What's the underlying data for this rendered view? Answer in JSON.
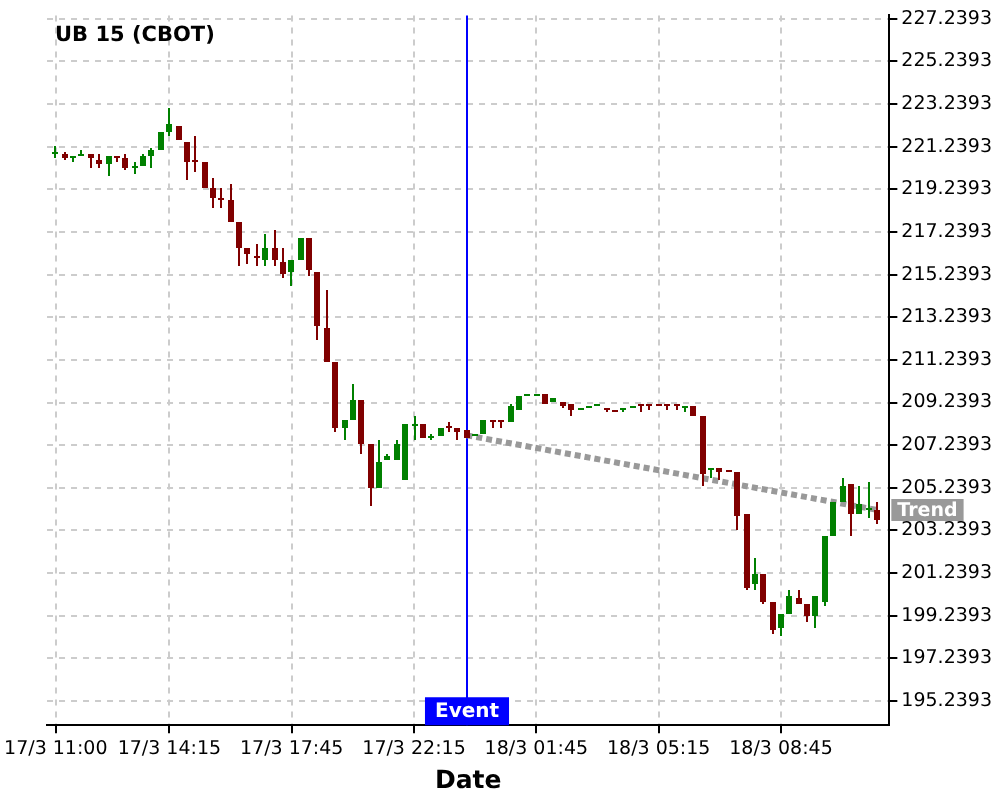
{
  "chart_data": {
    "type": "candlestick",
    "title": "UB 15 (CBOT)",
    "xlabel": "Date",
    "categories": [
      "17/3 11:00",
      null,
      null,
      null,
      null,
      null,
      null,
      null,
      null,
      null,
      null,
      null,
      null,
      "17/3 14:15",
      null,
      null,
      null,
      null,
      null,
      null,
      null,
      null,
      null,
      null,
      null,
      null,
      null,
      "17/3 17:45",
      null,
      null,
      null,
      null,
      null,
      null,
      null,
      null,
      null,
      null,
      null,
      null,
      null,
      "17/3 22:15",
      null,
      null,
      null,
      null,
      null,
      null,
      null,
      null,
      null,
      null,
      null,
      null,
      null,
      "18/3 01:45",
      null,
      null,
      null,
      null,
      null,
      null,
      null,
      null,
      null,
      null,
      null,
      null,
      null,
      "18/3 05:15",
      null,
      null,
      null,
      null,
      null,
      null,
      null,
      null,
      null,
      null,
      null,
      null,
      null,
      "18/3 08:45",
      null,
      null,
      null,
      null,
      null,
      null,
      null,
      null,
      null,
      null,
      null
    ],
    "ylim": [
      194.1,
      227.4
    ],
    "yticks": [
      195.2393,
      197.2393,
      199.2393,
      201.2393,
      203.2393,
      205.2393,
      207.2393,
      209.2393,
      211.2393,
      213.2393,
      215.2393,
      217.2393,
      219.2393,
      221.2393,
      223.2393,
      225.2393,
      227.2393
    ],
    "grid": true,
    "annotations": [
      "Event"
    ],
    "series": [
      {
        "ohlc": [
          [
            220.95,
            221.3,
            220.7,
            221.0
          ],
          [
            220.9,
            221.0,
            220.65,
            220.7
          ],
          [
            220.75,
            220.85,
            220.5,
            220.85
          ],
          [
            220.8,
            221.1,
            220.8,
            220.9
          ],
          [
            220.9,
            220.9,
            220.2,
            220.7
          ],
          [
            220.6,
            220.9,
            220.2,
            220.45
          ],
          [
            220.45,
            220.85,
            219.9,
            220.85
          ],
          [
            220.85,
            220.85,
            220.5,
            220.7
          ],
          [
            220.7,
            220.9,
            220.15,
            220.2
          ],
          [
            220.2,
            220.5,
            220.0,
            220.3
          ],
          [
            220.3,
            220.9,
            220.3,
            220.8
          ],
          [
            220.8,
            221.15,
            220.2,
            221.05
          ],
          [
            221.05,
            221.95,
            221.05,
            221.95
          ],
          [
            221.95,
            223.05,
            221.75,
            222.3
          ],
          [
            222.25,
            222.25,
            221.55,
            221.55
          ],
          [
            221.45,
            221.45,
            219.65,
            220.55
          ],
          [
            220.6,
            221.75,
            220.1,
            220.55
          ],
          [
            220.55,
            220.55,
            219.3,
            219.3
          ],
          [
            219.3,
            219.75,
            218.35,
            218.85
          ],
          [
            218.85,
            219.3,
            218.4,
            218.7
          ],
          [
            218.7,
            219.45,
            217.75,
            217.75
          ],
          [
            217.75,
            217.75,
            215.6,
            216.45
          ],
          [
            216.45,
            216.45,
            215.7,
            216.2
          ],
          [
            216.15,
            216.7,
            215.65,
            216.0
          ],
          [
            215.95,
            217.1,
            215.65,
            216.45
          ],
          [
            216.45,
            217.35,
            215.65,
            215.9
          ],
          [
            215.85,
            216.45,
            215.05,
            215.3
          ],
          [
            215.35,
            215.95,
            214.75,
            215.95
          ],
          [
            215.95,
            217.0,
            215.95,
            217.0
          ],
          [
            217.0,
            217.0,
            215.15,
            215.5
          ],
          [
            215.4,
            215.4,
            212.2,
            212.8
          ],
          [
            212.7,
            214.5,
            211.15,
            211.15
          ],
          [
            211.15,
            211.15,
            207.9,
            208.0
          ],
          [
            208.0,
            208.45,
            207.5,
            208.45
          ],
          [
            208.45,
            210.1,
            208.45,
            209.4
          ],
          [
            209.4,
            209.4,
            206.85,
            207.25
          ],
          [
            207.25,
            207.25,
            204.4,
            205.2
          ],
          [
            205.2,
            207.45,
            205.2,
            206.45
          ],
          [
            206.5,
            206.85,
            206.5,
            206.7
          ],
          [
            206.55,
            207.5,
            206.55,
            207.3
          ],
          [
            205.65,
            208.2,
            205.65,
            208.2
          ],
          [
            208.15,
            208.6,
            207.45,
            208.25
          ],
          [
            208.2,
            208.2,
            207.55,
            207.55
          ],
          [
            207.6,
            207.8,
            207.45,
            207.7
          ],
          [
            207.7,
            208.05,
            207.7,
            208.05
          ],
          [
            208.1,
            208.35,
            207.9,
            208.0
          ],
          [
            208.0,
            208.0,
            207.45,
            207.9
          ],
          [
            207.95,
            207.95,
            207.6,
            207.6
          ],
          [
            207.7,
            207.8,
            207.7,
            207.8
          ],
          [
            207.75,
            208.4,
            207.75,
            208.4
          ],
          [
            208.4,
            208.4,
            208.05,
            208.3
          ],
          [
            208.4,
            208.4,
            208.0,
            208.3
          ],
          [
            208.3,
            209.2,
            208.3,
            209.1
          ],
          [
            208.9,
            209.5,
            208.9,
            209.5
          ],
          [
            209.5,
            209.6,
            209.5,
            209.6
          ],
          [
            209.6,
            209.65,
            209.6,
            209.65
          ],
          [
            209.6,
            209.6,
            209.2,
            209.2
          ],
          [
            209.3,
            209.45,
            209.3,
            209.45
          ],
          [
            209.3,
            209.3,
            209.0,
            209.1
          ],
          [
            209.15,
            209.15,
            208.6,
            208.85
          ],
          [
            208.9,
            209.0,
            208.9,
            209.0
          ],
          [
            209.0,
            209.1,
            209.0,
            209.1
          ],
          [
            209.1,
            209.15,
            209.1,
            209.15
          ],
          [
            209.0,
            209.0,
            208.75,
            208.85
          ],
          [
            208.9,
            208.9,
            208.75,
            208.85
          ],
          [
            208.9,
            209.0,
            208.8,
            209.0
          ],
          [
            209.0,
            209.1,
            209.0,
            209.1
          ],
          [
            209.2,
            209.2,
            208.8,
            209.1
          ],
          [
            209.2,
            209.2,
            208.85,
            209.15
          ],
          [
            209.2,
            209.2,
            209.15,
            209.15
          ],
          [
            209.2,
            209.2,
            208.85,
            209.15
          ],
          [
            209.2,
            209.2,
            208.85,
            209.15
          ],
          [
            209.0,
            209.1,
            208.8,
            209.1
          ],
          [
            209.1,
            209.1,
            208.6,
            208.6
          ],
          [
            208.6,
            208.6,
            205.3,
            205.9
          ],
          [
            206.05,
            206.2,
            205.7,
            206.2
          ],
          [
            206.15,
            206.15,
            205.6,
            206.0
          ],
          [
            206.1,
            206.1,
            205.95,
            206.05
          ],
          [
            206.0,
            206.0,
            203.3,
            203.9
          ],
          [
            204.0,
            204.0,
            200.4,
            200.55
          ],
          [
            200.7,
            201.9,
            200.4,
            201.2
          ],
          [
            201.2,
            201.2,
            199.75,
            199.85
          ],
          [
            199.9,
            199.9,
            198.4,
            198.55
          ],
          [
            198.7,
            199.3,
            198.3,
            199.3
          ],
          [
            199.3,
            200.4,
            199.3,
            200.15
          ],
          [
            200.05,
            200.4,
            199.75,
            199.75
          ],
          [
            199.75,
            199.75,
            198.9,
            199.2
          ],
          [
            199.2,
            200.2,
            198.7,
            200.2
          ],
          [
            199.9,
            202.95,
            199.7,
            202.95
          ],
          [
            202.95,
            204.55,
            202.95,
            204.55
          ],
          [
            204.55,
            205.7,
            204.55,
            205.3
          ],
          [
            205.4,
            205.4,
            202.95,
            204.0
          ],
          [
            204.05,
            205.3,
            204.05,
            204.45
          ],
          [
            204.2,
            205.55,
            203.85,
            204.3
          ],
          [
            204.15,
            204.6,
            203.5,
            203.75
          ]
        ],
        "colors": [
          "#008000",
          "#800000",
          "#008000",
          "#008000",
          "#800000",
          "#800000",
          "#008000",
          "#800000",
          "#800000",
          "#008000",
          "#008000",
          "#008000",
          "#008000",
          "#008000",
          "#800000",
          "#800000",
          "#800000",
          "#800000",
          "#800000",
          "#800000",
          "#800000",
          "#800000",
          "#800000",
          "#800000",
          "#008000",
          "#800000",
          "#800000",
          "#008000",
          "#008000",
          "#800000",
          "#800000",
          "#800000",
          "#800000",
          "#008000",
          "#008000",
          "#800000",
          "#800000",
          "#008000",
          "#008000",
          "#008000",
          "#008000",
          "#008000",
          "#800000",
          "#008000",
          "#008000",
          "#800000",
          "#800000",
          "#800000",
          "#008000",
          "#008000",
          "#800000",
          "#800000",
          "#008000",
          "#008000",
          "#008000",
          "#008000",
          "#800000",
          "#008000",
          "#800000",
          "#800000",
          "#008000",
          "#008000",
          "#008000",
          "#800000",
          "#800000",
          "#008000",
          "#008000",
          "#800000",
          "#800000",
          "#800000",
          "#800000",
          "#800000",
          "#008000",
          "#800000",
          "#800000",
          "#008000",
          "#800000",
          "#800000",
          "#800000",
          "#800000",
          "#008000",
          "#800000",
          "#800000",
          "#008000",
          "#008000",
          "#800000",
          "#800000",
          "#008000",
          "#008000",
          "#008000",
          "#008000",
          "#800000",
          "#008000",
          "#008000",
          "#800000"
        ]
      },
      {
        "type": "line",
        "name": "Trend",
        "color": "#999999",
        "line_style": "dotted",
        "marker": "none",
        "values": [
          null,
          null,
          null,
          null,
          null,
          null,
          null,
          null,
          null,
          null,
          null,
          null,
          null,
          null,
          null,
          null,
          null,
          null,
          null,
          null,
          null,
          null,
          null,
          null,
          null,
          null,
          null,
          null,
          null,
          null,
          null,
          null,
          null,
          null,
          null,
          null,
          null,
          null,
          null,
          null,
          null,
          null,
          null,
          null,
          null,
          null,
          null,
          207.7,
          null,
          null,
          null,
          null,
          null,
          null,
          null,
          null,
          null,
          null,
          null,
          null,
          null,
          null,
          null,
          null,
          null,
          null,
          null,
          null,
          null,
          null,
          null,
          null,
          null,
          null,
          null,
          null,
          null,
          null,
          null,
          null,
          null,
          null,
          null,
          null,
          null,
          null,
          null,
          null,
          null,
          null,
          null,
          null,
          null,
          null,
          204.2
        ]
      }
    ]
  }
}
